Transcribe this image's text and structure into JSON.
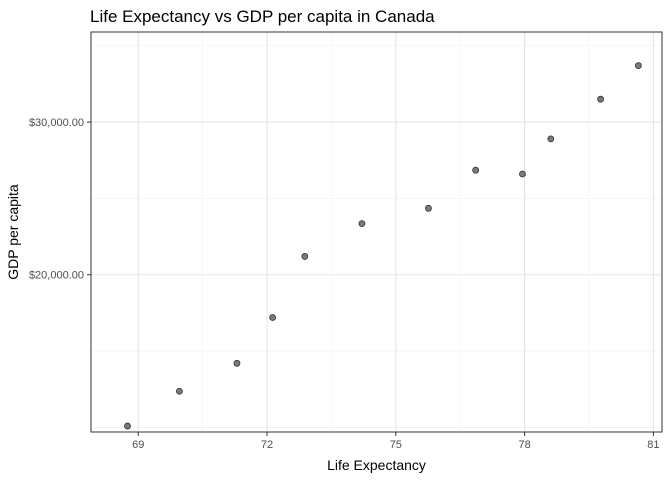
{
  "chart_data": {
    "type": "scatter",
    "title": "Life Expectancy vs GDP per capita in Canada",
    "xlabel": "Life Expectancy",
    "ylabel": "GDP per capita",
    "xlim": [
      67.9,
      81.2
    ],
    "ylim": [
      9700,
      35900
    ],
    "x_ticks": [
      {
        "value": 69,
        "label": "69"
      },
      {
        "value": 72,
        "label": "72"
      },
      {
        "value": 75,
        "label": "75"
      },
      {
        "value": 78,
        "label": "78"
      },
      {
        "value": 81,
        "label": "81"
      }
    ],
    "x_minor": [
      70.5,
      73.5,
      76.5,
      79.5
    ],
    "y_ticks": [
      {
        "value": 20000,
        "label": "$20,000.00"
      },
      {
        "value": 30000,
        "label": "$30,000.00"
      }
    ],
    "y_minor": [
      15000,
      25000,
      35000,
      10000
    ],
    "point_color": "#4d4d4d",
    "grid": true,
    "x": [
      68.75,
      69.96,
      71.3,
      72.13,
      72.88,
      74.21,
      75.76,
      76.86,
      77.95,
      78.61,
      79.77,
      80.65
    ],
    "y": [
      10090,
      12370,
      14200,
      17200,
      21200,
      23350,
      24350,
      26850,
      26600,
      28900,
      31500,
      33700
    ]
  }
}
